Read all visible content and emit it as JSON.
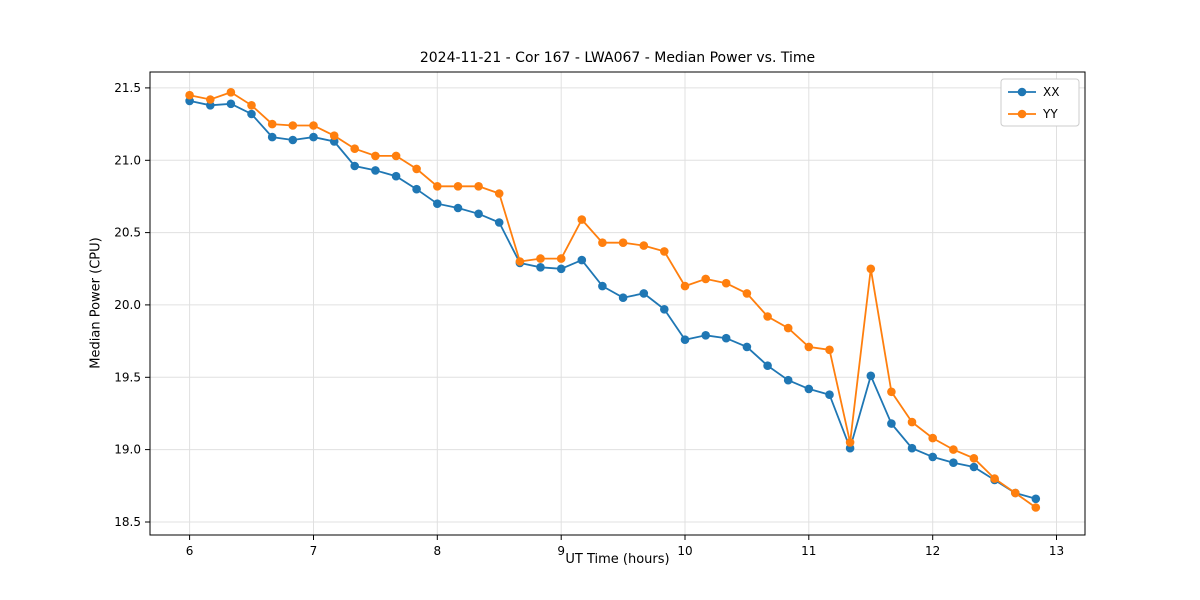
{
  "chart_data": {
    "type": "line",
    "title": "2024-11-21 - Cor 167 - LWA067 - Median Power vs. Time",
    "xlabel": "UT Time (hours)",
    "ylabel": "Median Power (CPU)",
    "xlim": [
      5.68,
      13.23
    ],
    "ylim": [
      18.41,
      21.61
    ],
    "xticks": [
      6,
      7,
      8,
      9,
      10,
      11,
      12,
      13
    ],
    "xtick_labels": [
      "6",
      "7",
      "8",
      "9",
      "10",
      "11",
      "12",
      "13"
    ],
    "yticks": [
      18.5,
      19.0,
      19.5,
      20.0,
      20.5,
      21.0,
      21.5
    ],
    "ytick_labels": [
      "18.5",
      "19.0",
      "19.5",
      "20.0",
      "20.5",
      "21.0",
      "21.5"
    ],
    "grid": true,
    "legend_position": "upper right",
    "marker": "circle",
    "x": [
      6.0,
      6.167,
      6.333,
      6.5,
      6.667,
      6.833,
      7.0,
      7.167,
      7.333,
      7.5,
      7.667,
      7.833,
      8.0,
      8.167,
      8.333,
      8.5,
      8.667,
      8.833,
      9.0,
      9.167,
      9.333,
      9.5,
      9.667,
      9.833,
      10.0,
      10.167,
      10.333,
      10.5,
      10.667,
      10.833,
      11.0,
      11.167,
      11.333,
      11.5,
      11.667,
      11.833,
      12.0,
      12.167,
      12.333,
      12.5,
      12.667,
      12.833
    ],
    "series": [
      {
        "name": "XX",
        "color": "#1f77b4",
        "values": [
          21.41,
          21.38,
          21.39,
          21.32,
          21.16,
          21.14,
          21.16,
          21.13,
          20.96,
          20.93,
          20.89,
          20.8,
          20.7,
          20.67,
          20.63,
          20.57,
          20.29,
          20.26,
          20.25,
          20.31,
          20.13,
          20.05,
          20.08,
          19.97,
          19.76,
          19.79,
          19.77,
          19.71,
          19.58,
          19.48,
          19.42,
          19.38,
          19.01,
          19.51,
          19.18,
          19.01,
          18.95,
          18.91,
          18.88,
          18.79,
          18.7,
          18.66
        ]
      },
      {
        "name": "YY",
        "color": "#ff7f0e",
        "values": [
          21.45,
          21.42,
          21.47,
          21.38,
          21.25,
          21.24,
          21.24,
          21.17,
          21.08,
          21.03,
          21.03,
          20.94,
          20.82,
          20.82,
          20.82,
          20.77,
          20.3,
          20.32,
          20.32,
          20.59,
          20.43,
          20.43,
          20.41,
          20.37,
          20.13,
          20.18,
          20.15,
          20.08,
          19.92,
          19.84,
          19.71,
          19.69,
          19.05,
          20.25,
          19.4,
          19.19,
          19.08,
          19.0,
          18.94,
          18.8,
          18.7,
          18.6
        ]
      }
    ]
  }
}
